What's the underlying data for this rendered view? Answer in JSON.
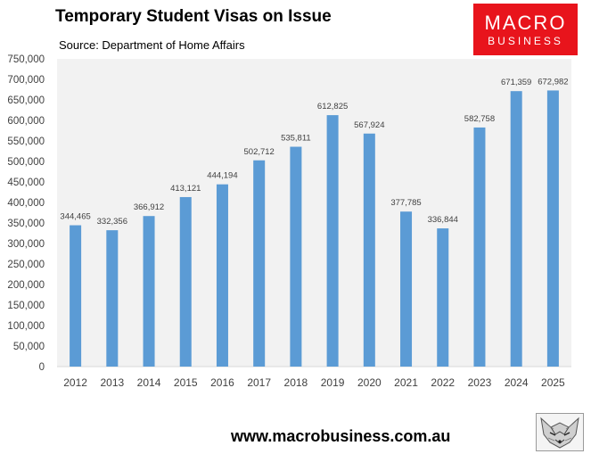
{
  "header": {
    "title": "Temporary Student Visas on Issue",
    "subtitle": "Source: Department of Home Affairs"
  },
  "logo": {
    "line1": "MACRO",
    "line2": "BUSINESS",
    "background": "#e8141c",
    "text_color": "#ffffff"
  },
  "footer": {
    "url": "www.macrobusiness.com.au"
  },
  "wolf_icon": "wolf-logo-icon",
  "colors": {
    "bar": "#5b9bd5",
    "plot_background": "#f2f2f2"
  },
  "chart_data": {
    "type": "bar",
    "title": "Temporary Student Visas on Issue",
    "subtitle": "Source: Department of Home Affairs",
    "xlabel": "",
    "ylabel": "",
    "categories": [
      "2012",
      "2013",
      "2014",
      "2015",
      "2016",
      "2017",
      "2018",
      "2019",
      "2020",
      "2021",
      "2022",
      "2023",
      "2024",
      "2025"
    ],
    "values": [
      344465,
      332356,
      366912,
      413121,
      444194,
      502712,
      535811,
      612825,
      567924,
      377785,
      336844,
      582758,
      671359,
      672982
    ],
    "data_labels": [
      "344,465",
      "332,356",
      "366,912",
      "413,121",
      "444,194",
      "502,712",
      "535,811",
      "612,825",
      "567,924",
      "377,785",
      "336,844",
      "582,758",
      "671,359",
      "672,982"
    ],
    "ylim": [
      0,
      750000
    ],
    "yticks": [
      0,
      50000,
      100000,
      150000,
      200000,
      250000,
      300000,
      350000,
      400000,
      450000,
      500000,
      550000,
      600000,
      650000,
      700000,
      750000
    ],
    "ytick_labels": [
      "0",
      "50,000",
      "100,000",
      "150,000",
      "200,000",
      "250,000",
      "300,000",
      "350,000",
      "400,000",
      "450,000",
      "500,000",
      "550,000",
      "600,000",
      "650,000",
      "700,000",
      "750,000"
    ],
    "grid": false,
    "legend": "none"
  }
}
